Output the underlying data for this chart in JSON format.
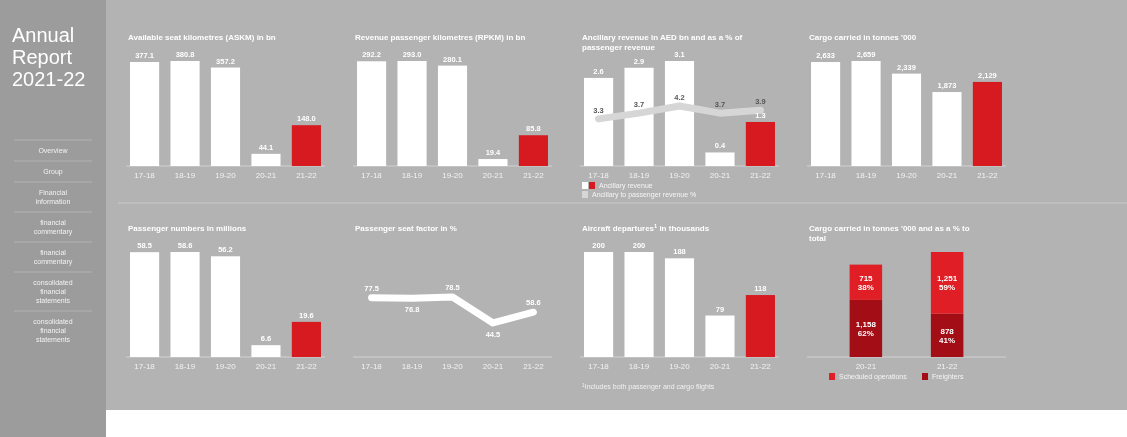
{
  "chart_data": [
    {
      "type": "other",
      "title": "Annual Report 2021-22",
      "annotations": [
        "Overview",
        "Group",
        "Financial information",
        "financial commentary",
        "financial commentary",
        "consolidated financial statements",
        "consolidated financial statements"
      ]
    },
    {
      "type": "bar",
      "title": "Available seat kilometres (ASKM) in bn",
      "categories": [
        "17-18",
        "18-19",
        "19-20",
        "20-21",
        "21-22"
      ],
      "values": [
        377.1,
        380.8,
        357.2,
        44.1,
        148.0
      ],
      "value_labels": [
        "377.1",
        "380.8",
        "357.2",
        "44.1",
        "148.0"
      ],
      "colors": [
        "#ffffff",
        "#ffffff",
        "#ffffff",
        "#ffffff",
        "#d71920"
      ]
    },
    {
      "type": "bar",
      "title": "Revenue passenger kilometres (RPKM) in bn",
      "categories": [
        "17-18",
        "18-19",
        "19-20",
        "20-21",
        "21-22"
      ],
      "values": [
        292.2,
        293.0,
        280.1,
        19.4,
        85.8
      ],
      "value_labels": [
        "292.2",
        "293.0",
        "280.1",
        "19.4",
        "85.8"
      ],
      "colors": [
        "#ffffff",
        "#ffffff",
        "#ffffff",
        "#ffffff",
        "#d71920"
      ]
    },
    {
      "type": "bar",
      "title": "Ancillary revenue in AED bn and as a % of passenger revenue",
      "categories": [
        "17-18",
        "18-19",
        "19-20",
        "20-21",
        "21-22"
      ],
      "legend": "bottom left",
      "series": [
        {
          "name": "Ancillary revenue",
          "type": "bar",
          "values": [
            2.6,
            2.9,
            3.1,
            0.4,
            1.3
          ],
          "value_labels": [
            "2.6",
            "2.9",
            "3.1",
            "0.4",
            "1.3"
          ],
          "colors": [
            "#ffffff",
            "#ffffff",
            "#ffffff",
            "#ffffff",
            "#d71920"
          ]
        },
        {
          "name": "Ancillary to passenger revenue %",
          "type": "line",
          "axis": "y2",
          "color": "#d6d6d6",
          "values": [
            3.3,
            3.7,
            4.2,
            3.7,
            3.9
          ],
          "value_labels": [
            "3.3",
            "3.7",
            "4.2",
            "3.7",
            "3.9"
          ]
        }
      ]
    },
    {
      "type": "bar",
      "title": "Cargo carried in tonnes '000",
      "categories": [
        "17-18",
        "18-19",
        "19-20",
        "20-21",
        "21-22"
      ],
      "values": [
        2633,
        2659,
        2339,
        1873,
        2129
      ],
      "value_labels": [
        "2,633",
        "2,659",
        "2,339",
        "1,873",
        "2,129"
      ],
      "colors": [
        "#ffffff",
        "#ffffff",
        "#ffffff",
        "#ffffff",
        "#d71920"
      ]
    },
    {
      "type": "bar",
      "title": "Passenger numbers in millions",
      "categories": [
        "17-18",
        "18-19",
        "19-20",
        "20-21",
        "21-22"
      ],
      "values": [
        58.5,
        58.6,
        56.2,
        6.6,
        19.6
      ],
      "value_labels": [
        "58.5",
        "58.6",
        "56.2",
        "6.6",
        "19.6"
      ],
      "colors": [
        "#ffffff",
        "#ffffff",
        "#ffffff",
        "#ffffff",
        "#d71920"
      ]
    },
    {
      "type": "line",
      "title": "Passenger seat factor in %",
      "categories": [
        "17-18",
        "18-19",
        "19-20",
        "20-21",
        "21-22"
      ],
      "values": [
        77.5,
        76.8,
        78.5,
        44.5,
        58.6
      ],
      "value_labels": [
        "77.5",
        "76.8",
        "78.5",
        "44.5",
        "58.6"
      ],
      "color": "#ffffff"
    },
    {
      "type": "bar",
      "title": "Aircraft departures$^{1}$ in thousands",
      "categories": [
        "17-18",
        "18-19",
        "19-20",
        "20-21",
        "21-22"
      ],
      "values": [
        200,
        200,
        188,
        79,
        118
      ],
      "value_labels": [
        "200",
        "200",
        "188",
        "79",
        "118"
      ],
      "colors": [
        "#ffffff",
        "#ffffff",
        "#ffffff",
        "#ffffff",
        "#d71920"
      ],
      "annotations": [
        "$^{1}$Includes both passenger and cargo flights"
      ]
    },
    {
      "type": "bar",
      "stacked": true,
      "title": "Cargo carried in tonnes '000 and as a % to total",
      "categories": [
        "20-21",
        "21-22"
      ],
      "legend": "bottom",
      "series": [
        {
          "name": "Freighters",
          "color": "#a30d16",
          "values": [
            1158,
            878
          ],
          "value_labels": [
            "1,158\n62%",
            "878\n41%"
          ]
        },
        {
          "name": "Scheduled operations",
          "color": "#e01e26",
          "values": [
            715,
            1251
          ],
          "value_labels": [
            "715\n38%",
            "1,251\n59%"
          ]
        }
      ]
    }
  ]
}
